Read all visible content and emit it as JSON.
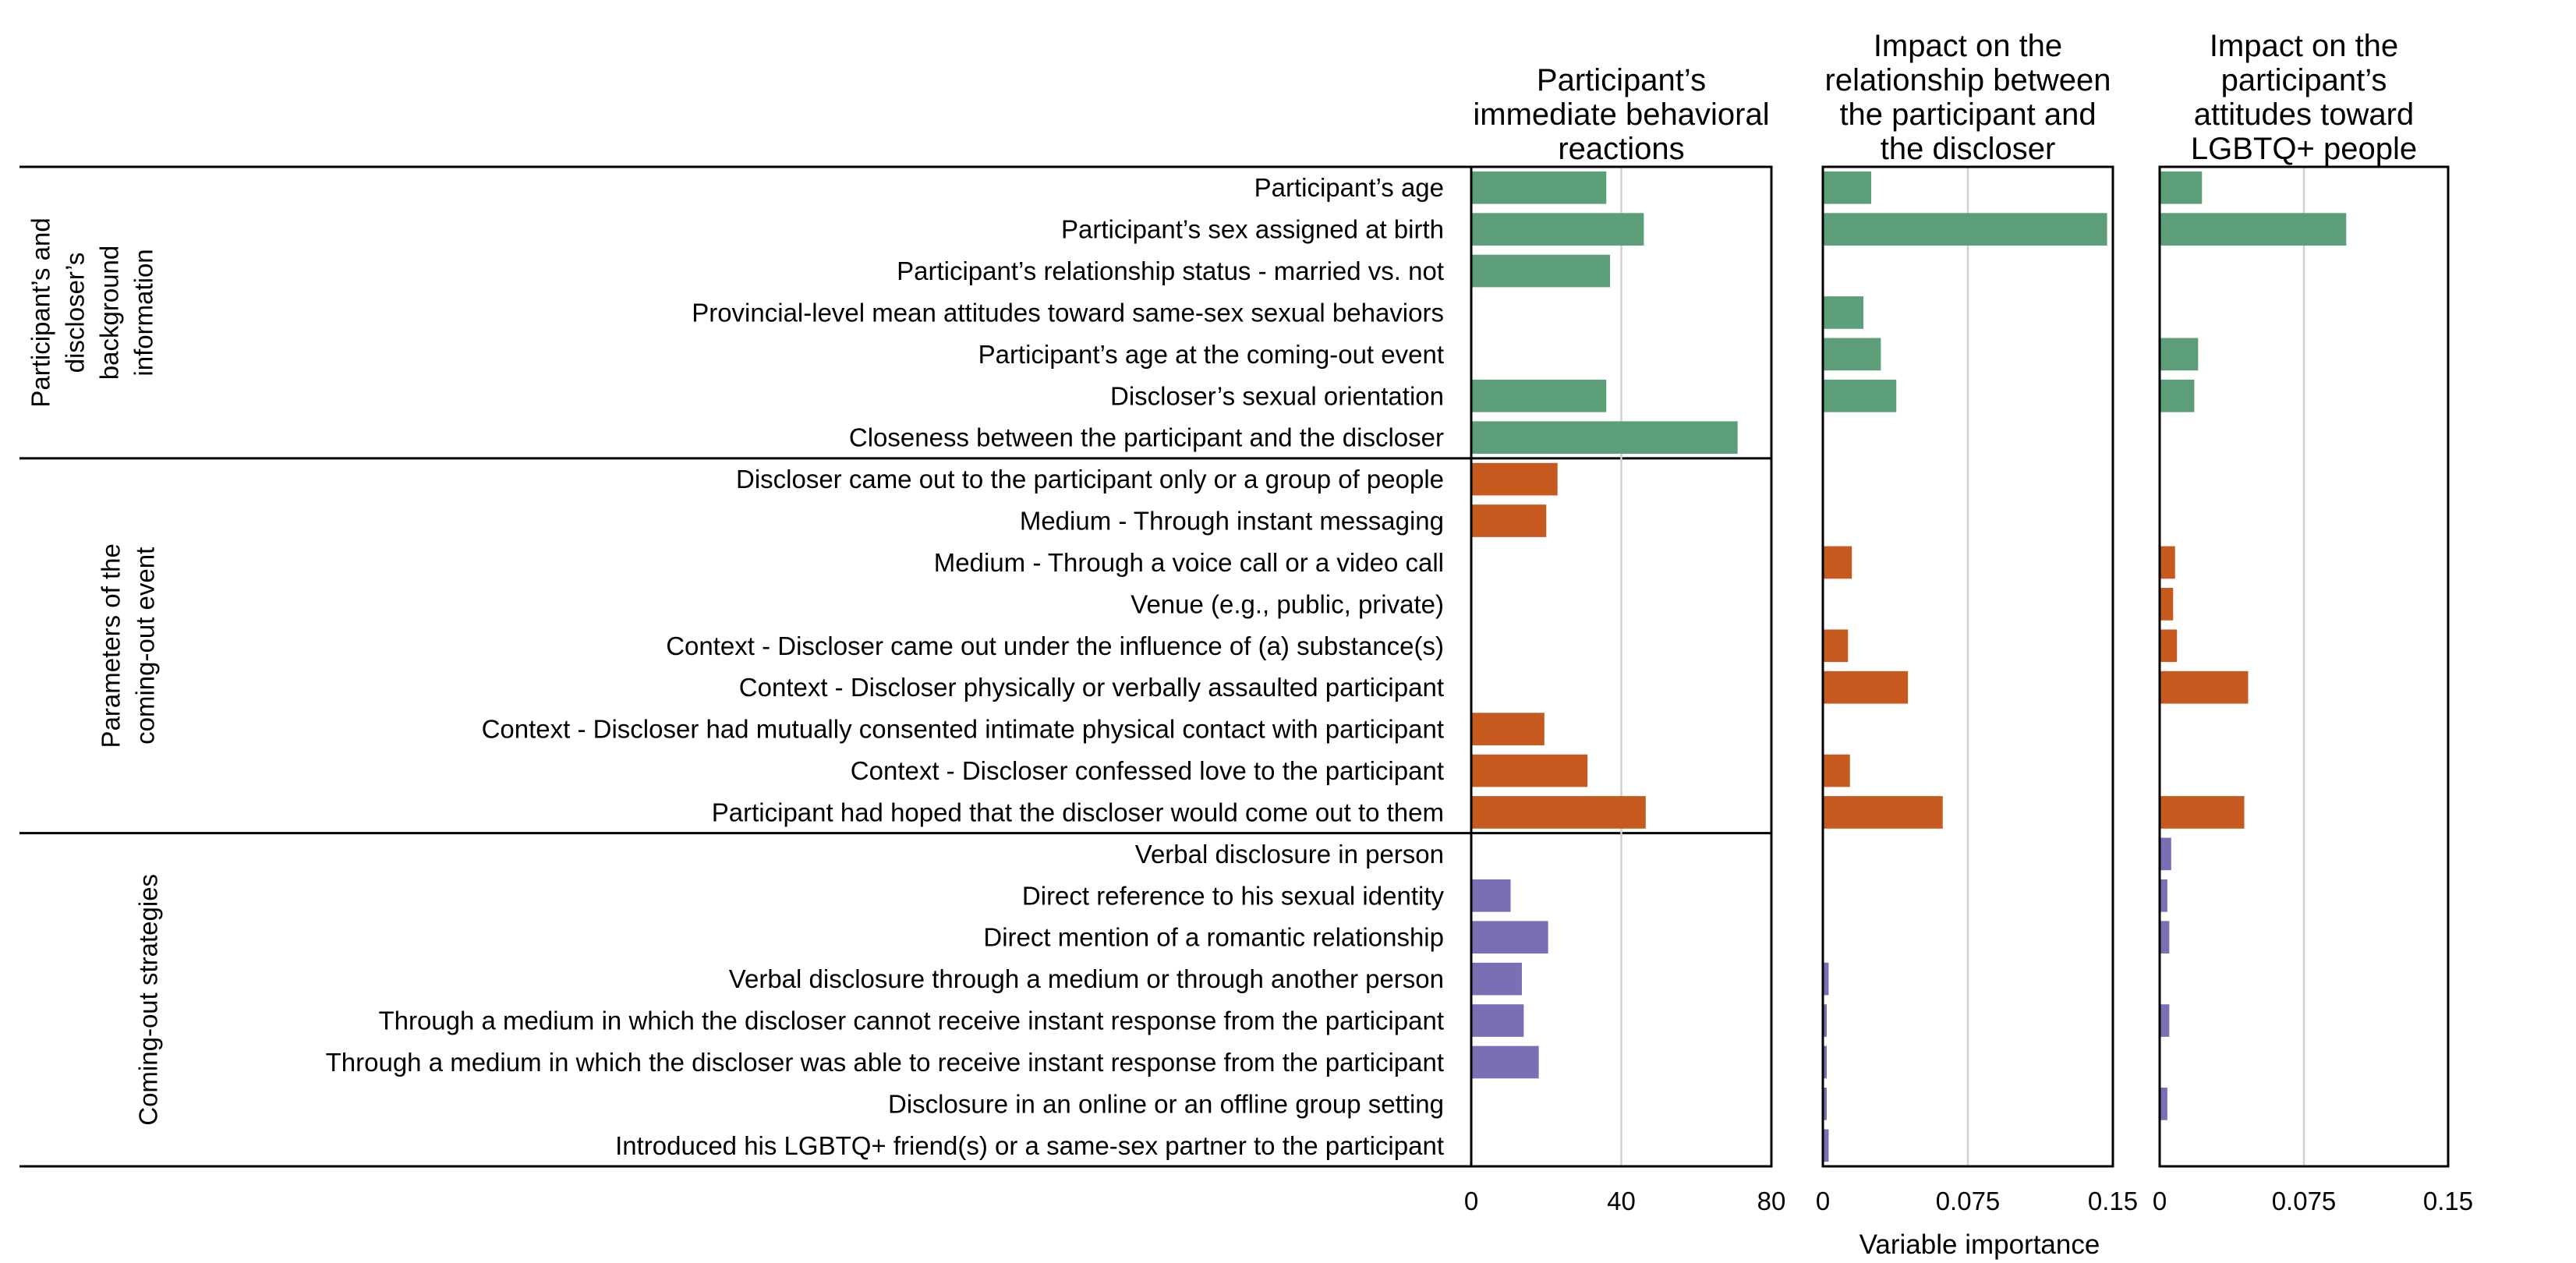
{
  "chart_data": {
    "type": "bar",
    "orientation": "horizontal",
    "xlabel": "Variable importance",
    "grid": true,
    "categories": [
      "Participant’s age",
      "Participant’s sex assigned at birth",
      "Participant’s relationship status - married vs. not",
      "Provincial-level mean attitudes toward same-sex sexual behaviors",
      "Participant’s age at the coming-out event",
      "Discloser’s sexual orientation",
      "Closeness between the participant and the discloser",
      "Discloser came out to the participant only or a group of people",
      "Medium - Through instant messaging",
      "Medium - Through a voice call or a video call",
      "Venue (e.g., public, private)",
      "Context - Discloser came out under the influence of (a) substance(s)",
      "Context - Discloser physically or verbally assaulted participant",
      "Context - Discloser had mutually consented intimate physical contact with participant",
      "Context - Discloser confessed love to the participant",
      "Participant had hoped that the discloser would come out to them",
      "Verbal disclosure in person",
      "Direct reference to his sexual identity",
      "Direct mention of a romantic relationship",
      "Verbal disclosure through a medium or through another person",
      "Through a medium in which the discloser cannot receive instant response from the participant",
      "Through a medium in which the discloser was able to receive instant response from the participant",
      "Disclosure in an online or an offline group setting",
      "Introduced his LGBTQ+ friend(s) or a same-sex partner to the participant"
    ],
    "groups": [
      {
        "label": "Participant’s and discloser’s background information",
        "lines": [
          "Participant’s and",
          "discloser’s",
          "background",
          "information"
        ],
        "start": 0,
        "end": 6,
        "color": "#5b9e78"
      },
      {
        "label": "Parameters of the coming-out event",
        "lines": [
          "Parameters of the",
          "coming-out event"
        ],
        "start": 7,
        "end": 15,
        "color": "#c65a1e"
      },
      {
        "label": "Coming-out strategies",
        "lines": [
          "Coming-out strategies"
        ],
        "start": 16,
        "end": 23,
        "color": "#7a6fb5"
      }
    ],
    "panels": [
      {
        "title_lines": [
          "Participant’s",
          "immediate behavioral",
          "reactions"
        ],
        "xlim": [
          0,
          80
        ],
        "ticks": [
          0,
          40,
          80
        ],
        "tick_labels": [
          "0",
          "40",
          "80"
        ],
        "values": [
          36,
          46,
          37,
          null,
          null,
          36,
          71,
          23,
          20,
          null,
          null,
          null,
          null,
          19.5,
          31,
          46.5,
          null,
          10.5,
          20.5,
          13.5,
          14,
          18,
          null,
          null
        ]
      },
      {
        "title_lines": [
          "Impact on the",
          "relationship between",
          "the participant and",
          "the discloser"
        ],
        "xlim": [
          0,
          0.15
        ],
        "ticks": [
          0,
          0.075,
          0.15
        ],
        "tick_labels": [
          "0",
          "0.075",
          "0.15"
        ],
        "values": [
          0.025,
          0.147,
          null,
          0.021,
          0.03,
          0.038,
          null,
          null,
          null,
          0.015,
          null,
          0.013,
          0.044,
          null,
          0.014,
          0.062,
          null,
          null,
          null,
          0.003,
          0.002,
          0.002,
          0.002,
          0.003
        ]
      },
      {
        "title_lines": [
          "Impact on the",
          "participant’s",
          "attitudes toward",
          "LGBTQ+ people"
        ],
        "xlim": [
          0,
          0.15
        ],
        "ticks": [
          0,
          0.075,
          0.15
        ],
        "tick_labels": [
          "0",
          "0.075",
          "0.15"
        ],
        "values": [
          0.022,
          0.097,
          null,
          null,
          0.02,
          0.018,
          null,
          null,
          null,
          0.008,
          0.007,
          0.009,
          0.046,
          null,
          null,
          0.044,
          0.006,
          0.004,
          0.005,
          null,
          0.005,
          null,
          0.004,
          null
        ]
      }
    ]
  }
}
